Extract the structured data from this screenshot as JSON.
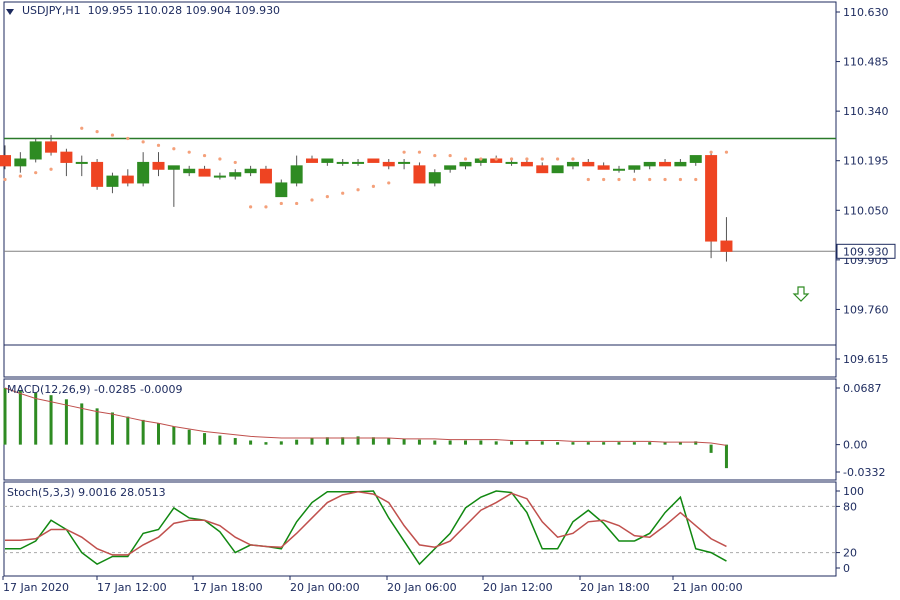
{
  "symbol_header": "USDJPY,H1  109.955 110.028 109.904 109.930",
  "main": {
    "price_labels": [
      "110.630",
      "110.485",
      "110.340",
      "110.195",
      "110.050",
      "109.905",
      "109.760",
      "109.615"
    ],
    "current_price_label": "109.930",
    "colors": {
      "bull": "#2e8b22",
      "bear": "#ee4422",
      "psar": "#f4a07a",
      "hline": "#2a7a2a",
      "axis": "#1c2a5e"
    }
  },
  "macd": {
    "label": "MACD(12,26,9) -0.0285 -0.0009",
    "scale_labels": [
      "0.0687",
      "0.00",
      "-0.0332"
    ]
  },
  "stoch": {
    "label": "Stoch(5,3,3) 9.0016 28.0513",
    "scale_labels": [
      "100",
      "80",
      "20",
      "0"
    ]
  },
  "time_labels": [
    "17 Jan 2020",
    "17 Jan 12:00",
    "17 Jan 18:00",
    "20 Jan 00:00",
    "20 Jan 06:00",
    "20 Jan 12:00",
    "20 Jan 18:00",
    "21 Jan 00:00"
  ],
  "chart_data": {
    "type": "candlestick",
    "symbol": "USDJPY",
    "timeframe": "H1",
    "ylim": [
      109.615,
      110.63
    ],
    "horizontal_lines": [
      110.26,
      109.93
    ],
    "candles": [
      [
        110.21,
        110.24,
        110.17,
        110.18
      ],
      [
        110.18,
        110.22,
        110.16,
        110.2
      ],
      [
        110.2,
        110.26,
        110.19,
        110.25
      ],
      [
        110.25,
        110.27,
        110.21,
        110.22
      ],
      [
        110.22,
        110.23,
        110.15,
        110.19
      ],
      [
        110.19,
        110.21,
        110.15,
        110.19
      ],
      [
        110.19,
        110.2,
        110.11,
        110.12
      ],
      [
        110.12,
        110.16,
        110.1,
        110.15
      ],
      [
        110.15,
        110.17,
        110.12,
        110.13
      ],
      [
        110.13,
        110.22,
        110.12,
        110.19
      ],
      [
        110.19,
        110.22,
        110.15,
        110.17
      ],
      [
        110.17,
        110.18,
        110.06,
        110.18
      ],
      [
        110.16,
        110.18,
        110.15,
        110.17
      ],
      [
        110.17,
        110.18,
        110.15,
        110.15
      ],
      [
        110.15,
        110.16,
        110.14,
        110.15
      ],
      [
        110.15,
        110.17,
        110.14,
        110.16
      ],
      [
        110.16,
        110.18,
        110.15,
        110.17
      ],
      [
        110.17,
        110.18,
        110.14,
        110.13
      ],
      [
        110.09,
        110.14,
        110.09,
        110.13
      ],
      [
        110.13,
        110.21,
        110.12,
        110.18
      ],
      [
        110.2,
        110.21,
        110.19,
        110.19
      ],
      [
        110.19,
        110.2,
        110.18,
        110.2
      ],
      [
        110.19,
        110.2,
        110.18,
        110.19
      ],
      [
        110.19,
        110.2,
        110.18,
        110.19
      ],
      [
        110.2,
        110.2,
        110.19,
        110.19
      ],
      [
        110.19,
        110.2,
        110.17,
        110.18
      ],
      [
        110.19,
        110.2,
        110.17,
        110.19
      ],
      [
        110.18,
        110.19,
        110.13,
        110.13
      ],
      [
        110.13,
        110.17,
        110.12,
        110.16
      ],
      [
        110.17,
        110.18,
        110.16,
        110.18
      ],
      [
        110.18,
        110.19,
        110.17,
        110.19
      ],
      [
        110.19,
        110.2,
        110.18,
        110.2
      ],
      [
        110.2,
        110.21,
        110.19,
        110.19
      ],
      [
        110.19,
        110.2,
        110.18,
        110.19
      ],
      [
        110.19,
        110.2,
        110.18,
        110.18
      ],
      [
        110.18,
        110.19,
        110.16,
        110.16
      ],
      [
        110.16,
        110.18,
        110.16,
        110.18
      ],
      [
        110.18,
        110.19,
        110.17,
        110.19
      ],
      [
        110.19,
        110.2,
        110.18,
        110.18
      ],
      [
        110.18,
        110.19,
        110.17,
        110.17
      ],
      [
        110.17,
        110.18,
        110.16,
        110.17
      ],
      [
        110.17,
        110.18,
        110.16,
        110.18
      ],
      [
        110.18,
        110.19,
        110.17,
        110.19
      ],
      [
        110.19,
        110.2,
        110.18,
        110.18
      ],
      [
        110.18,
        110.2,
        110.18,
        110.19
      ],
      [
        110.19,
        110.21,
        110.18,
        110.21
      ],
      [
        110.21,
        110.22,
        109.91,
        109.96
      ],
      [
        109.96,
        110.03,
        109.9,
        109.93
      ]
    ],
    "parabolic_sar": [
      [
        0,
        110.14
      ],
      [
        1,
        110.15
      ],
      [
        2,
        110.16
      ],
      [
        3,
        110.17
      ],
      [
        5,
        110.29
      ],
      [
        6,
        110.28
      ],
      [
        7,
        110.27
      ],
      [
        8,
        110.26
      ],
      [
        9,
        110.25
      ],
      [
        10,
        110.24
      ],
      [
        11,
        110.23
      ],
      [
        12,
        110.22
      ],
      [
        13,
        110.21
      ],
      [
        14,
        110.2
      ],
      [
        15,
        110.19
      ],
      [
        16,
        110.06
      ],
      [
        17,
        110.06
      ],
      [
        18,
        110.07
      ],
      [
        19,
        110.07
      ],
      [
        20,
        110.08
      ],
      [
        21,
        110.09
      ],
      [
        22,
        110.1
      ],
      [
        23,
        110.11
      ],
      [
        24,
        110.12
      ],
      [
        25,
        110.13
      ],
      [
        26,
        110.22
      ],
      [
        27,
        110.22
      ],
      [
        28,
        110.21
      ],
      [
        29,
        110.21
      ],
      [
        30,
        110.2
      ],
      [
        31,
        110.2
      ],
      [
        32,
        110.2
      ],
      [
        33,
        110.2
      ],
      [
        34,
        110.2
      ],
      [
        35,
        110.2
      ],
      [
        36,
        110.2
      ],
      [
        37,
        110.2
      ],
      [
        38,
        110.14
      ],
      [
        39,
        110.14
      ],
      [
        40,
        110.14
      ],
      [
        41,
        110.14
      ],
      [
        42,
        110.14
      ],
      [
        43,
        110.14
      ],
      [
        44,
        110.14
      ],
      [
        45,
        110.14
      ],
      [
        46,
        110.22
      ],
      [
        47,
        110.22
      ]
    ],
    "macd_histogram": [
      0.0687,
      0.066,
      0.063,
      0.06,
      0.055,
      0.05,
      0.044,
      0.039,
      0.034,
      0.03,
      0.026,
      0.022,
      0.018,
      0.014,
      0.011,
      0.008,
      0.005,
      0.003,
      0.004,
      0.006,
      0.008,
      0.009,
      0.009,
      0.01,
      0.009,
      0.008,
      0.007,
      0.006,
      0.005,
      0.005,
      0.005,
      0.005,
      0.004,
      0.004,
      0.004,
      0.004,
      0.003,
      0.003,
      0.003,
      0.003,
      0.003,
      0.003,
      0.003,
      0.003,
      0.003,
      0.004,
      -0.01,
      -0.0285
    ],
    "macd_signal": [
      0.0687,
      0.062,
      0.056,
      0.052,
      0.048,
      0.044,
      0.04,
      0.037,
      0.033,
      0.029,
      0.026,
      0.022,
      0.019,
      0.016,
      0.014,
      0.012,
      0.01,
      0.009,
      0.008,
      0.008,
      0.008,
      0.008,
      0.008,
      0.008,
      0.008,
      0.008,
      0.007,
      0.007,
      0.007,
      0.006,
      0.006,
      0.006,
      0.006,
      0.005,
      0.005,
      0.005,
      0.005,
      0.004,
      0.004,
      0.004,
      0.004,
      0.004,
      0.004,
      0.003,
      0.003,
      0.003,
      0.002,
      -0.0009
    ],
    "stoch_main": [
      25,
      25,
      35,
      62,
      50,
      20,
      5,
      15,
      15,
      45,
      50,
      78,
      65,
      62,
      47,
      20,
      30,
      28,
      25,
      60,
      85,
      99,
      99,
      99,
      100,
      65,
      35,
      5,
      25,
      45,
      78,
      92,
      100,
      98,
      72,
      25,
      25,
      60,
      75,
      58,
      35,
      35,
      45,
      72,
      92,
      25,
      20,
      9.0016
    ],
    "stoch_signal": [
      36,
      36,
      38,
      50,
      50,
      40,
      25,
      17,
      17,
      30,
      40,
      58,
      62,
      62,
      55,
      40,
      30,
      28,
      27,
      45,
      65,
      85,
      95,
      99,
      96,
      85,
      55,
      30,
      27,
      35,
      55,
      75,
      85,
      97,
      90,
      60,
      40,
      45,
      60,
      62,
      55,
      42,
      40,
      55,
      72,
      55,
      38,
      28.0513
    ],
    "stoch_levels": [
      80,
      20
    ]
  }
}
